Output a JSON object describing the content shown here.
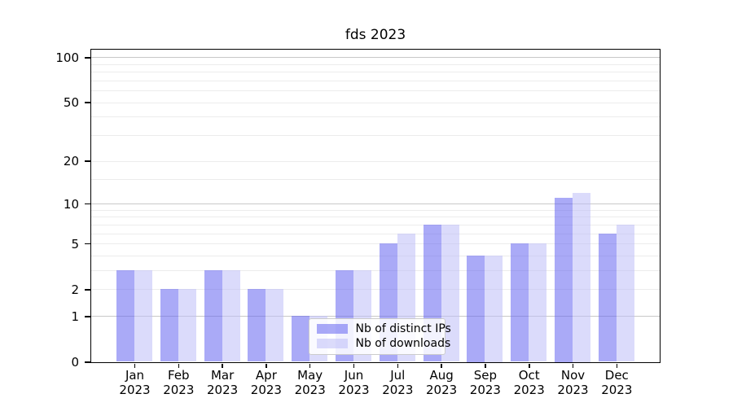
{
  "title": "fds 2023",
  "chart_data": {
    "type": "bar",
    "title": "fds 2023",
    "categories": [
      "Jan 2023",
      "Feb 2023",
      "Mar 2023",
      "Apr 2023",
      "May 2023",
      "Jun 2023",
      "Jul 2023",
      "Aug 2023",
      "Sep 2023",
      "Oct 2023",
      "Nov 2023",
      "Dec 2023"
    ],
    "series": [
      {
        "name": "Nb of distinct IPs",
        "color": "#a9a9f7",
        "fill": "rgba(100,100,240,0.55)",
        "values": [
          3,
          2,
          3,
          2,
          1,
          3,
          5,
          7,
          4,
          5,
          11,
          6
        ]
      },
      {
        "name": "Nb of downloads",
        "color": "#dbdbfa",
        "fill": "rgba(190,190,247,0.55)",
        "values": [
          3,
          2,
          3,
          2,
          1,
          3,
          6,
          7,
          4,
          5,
          12,
          7
        ]
      }
    ],
    "y_axis": {
      "scale": "log1p",
      "tick_values": [
        0,
        1,
        2,
        5,
        10,
        20,
        50,
        100
      ],
      "tick_labels": [
        "0",
        "1",
        "2",
        "5",
        "10",
        "20",
        "50",
        "100"
      ],
      "major_gridlines": [
        1,
        10,
        100
      ],
      "minor_gridlines": [
        2,
        3,
        4,
        5,
        6,
        7,
        8,
        9,
        15,
        20,
        30,
        40,
        50,
        60,
        70,
        80,
        90
      ],
      "ylim": [
        0,
        112
      ]
    },
    "xlabel": "",
    "ylabel": "",
    "grid": true,
    "legend_position": "lower center"
  },
  "colors": {
    "major_grid": "#c8c8c8",
    "minor_grid": "#ececec",
    "axis": "#000000",
    "background": "#ffffff",
    "legend_border": "#cccccc"
  }
}
